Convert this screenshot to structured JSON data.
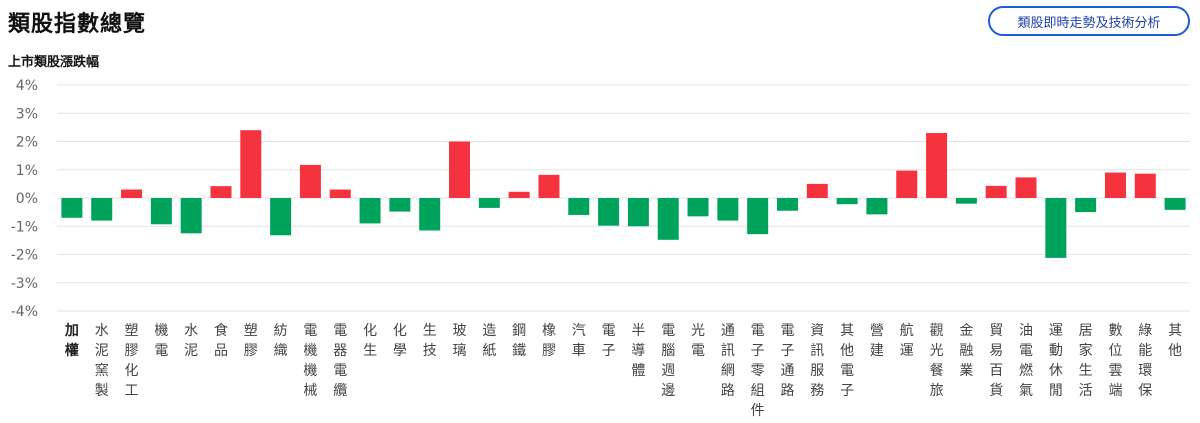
{
  "header": {
    "title": "類股指數總覽",
    "action_label": "類股即時走勢及技術分析"
  },
  "colors": {
    "up": "#f5333f",
    "down": "#00a35c",
    "grid": "#e3e3e3",
    "axis_text": "#666666"
  },
  "chart_data": {
    "type": "bar",
    "title": "上市類股漲跌幅",
    "xlabel": "",
    "ylabel": "",
    "ylim": [
      -4,
      4
    ],
    "yticks": [
      4,
      3,
      2,
      1,
      0,
      -1,
      -2,
      -3,
      -4
    ],
    "ytick_labels": [
      "4%",
      "3%",
      "2%",
      "1%",
      "0%",
      "-1%",
      "-2%",
      "-3%",
      "-4%"
    ],
    "grid": true,
    "categories": [
      "加權",
      "水泥窯製",
      "塑膠化工",
      "機電",
      "水泥",
      "食品",
      "塑膠",
      "紡織",
      "電機機械",
      "電器電纜",
      "化生",
      "化學",
      "生技",
      "玻璃",
      "造紙",
      "鋼鐵",
      "橡膠",
      "汽車",
      "電子",
      "半導體",
      "電腦週邊",
      "光電",
      "通訊網路",
      "電子零組件",
      "電子通路",
      "資訊服務",
      "其他電子",
      "營建",
      "航運",
      "觀光餐旅",
      "金融業",
      "貿易百貨",
      "油電燃氣",
      "運動休閒",
      "居家生活",
      "數位雲端",
      "綠能環保",
      "其他"
    ],
    "values": [
      -0.7,
      -0.8,
      0.3,
      -0.93,
      -1.25,
      0.42,
      2.4,
      -1.32,
      1.17,
      0.3,
      -0.9,
      -0.48,
      -1.15,
      2.0,
      -0.35,
      0.22,
      0.82,
      -0.6,
      -0.98,
      -1.0,
      -1.48,
      -0.65,
      -0.8,
      -1.28,
      -0.45,
      0.5,
      -0.22,
      -0.58,
      0.97,
      2.3,
      -0.2,
      0.43,
      0.73,
      -2.12,
      -0.5,
      0.9,
      0.86,
      -0.42
    ]
  }
}
